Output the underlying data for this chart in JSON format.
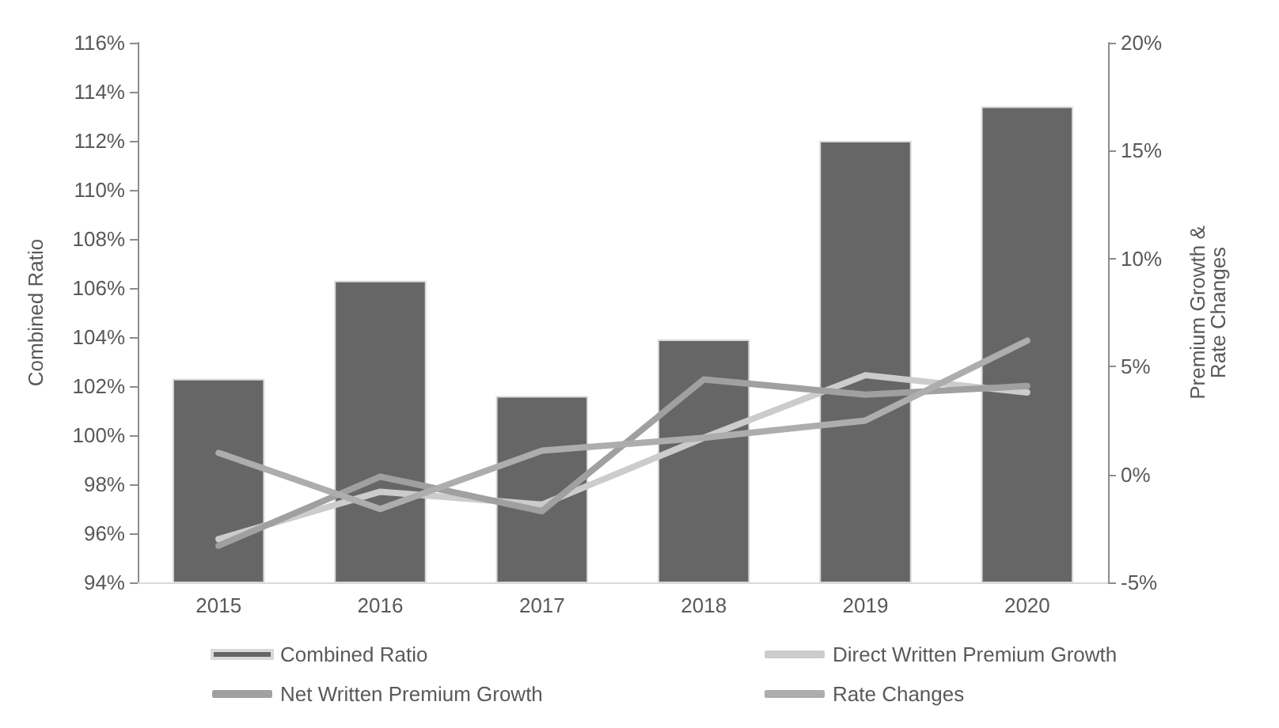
{
  "chart_data": {
    "type": "bar",
    "ylabel": "Combined Ratio",
    "y2label": "Premium Growth &\nRate Changes",
    "categories": [
      "2015",
      "2016",
      "2017",
      "2018",
      "2019",
      "2020"
    ],
    "series": [
      {
        "name": "Combined Ratio",
        "type": "bar",
        "color": "#666666",
        "values": [
          102.3,
          106.3,
          101.6,
          103.9,
          112.0,
          113.4
        ]
      },
      {
        "name": "Direct Written Premium Growth",
        "type": "line",
        "axis": "y2",
        "color": "#cccccc",
        "values": [
          -3.0,
          -0.8,
          -1.4,
          1.7,
          4.6,
          3.8
        ]
      },
      {
        "name": "Net Written Premium Growth",
        "type": "line",
        "axis": "y2",
        "color": "#a0a0a0",
        "values": [
          -3.3,
          -0.1,
          -1.7,
          4.4,
          3.7,
          4.1
        ]
      },
      {
        "name": "Rate Changes",
        "type": "line",
        "axis": "y2",
        "color": "#adadad",
        "values": [
          1.0,
          -1.6,
          1.1,
          1.7,
          2.5,
          6.2
        ]
      }
    ],
    "ylim": [
      94,
      116
    ],
    "yticks": [
      {
        "value": 94,
        "label": "94%"
      },
      {
        "value": 96,
        "label": "96%"
      },
      {
        "value": 98,
        "label": "98%"
      },
      {
        "value": 100,
        "label": "100%"
      },
      {
        "value": 102,
        "label": "102%"
      },
      {
        "value": 104,
        "label": "104%"
      },
      {
        "value": 106,
        "label": "106%"
      },
      {
        "value": 108,
        "label": "108%"
      },
      {
        "value": 110,
        "label": "110%"
      },
      {
        "value": 112,
        "label": "112%"
      },
      {
        "value": 114,
        "label": "114%"
      },
      {
        "value": 116,
        "label": "116%"
      }
    ],
    "y2lim": [
      -5,
      20
    ],
    "y2ticks": [
      {
        "value": -5,
        "label": "-5%"
      },
      {
        "value": 0,
        "label": "0%"
      },
      {
        "value": 5,
        "label": "5%"
      },
      {
        "value": 10,
        "label": "10%"
      },
      {
        "value": 15,
        "label": "15%"
      },
      {
        "value": 20,
        "label": "20%"
      }
    ],
    "grid": false,
    "legend": "bottom",
    "marker": "none",
    "line_style": "solid"
  }
}
